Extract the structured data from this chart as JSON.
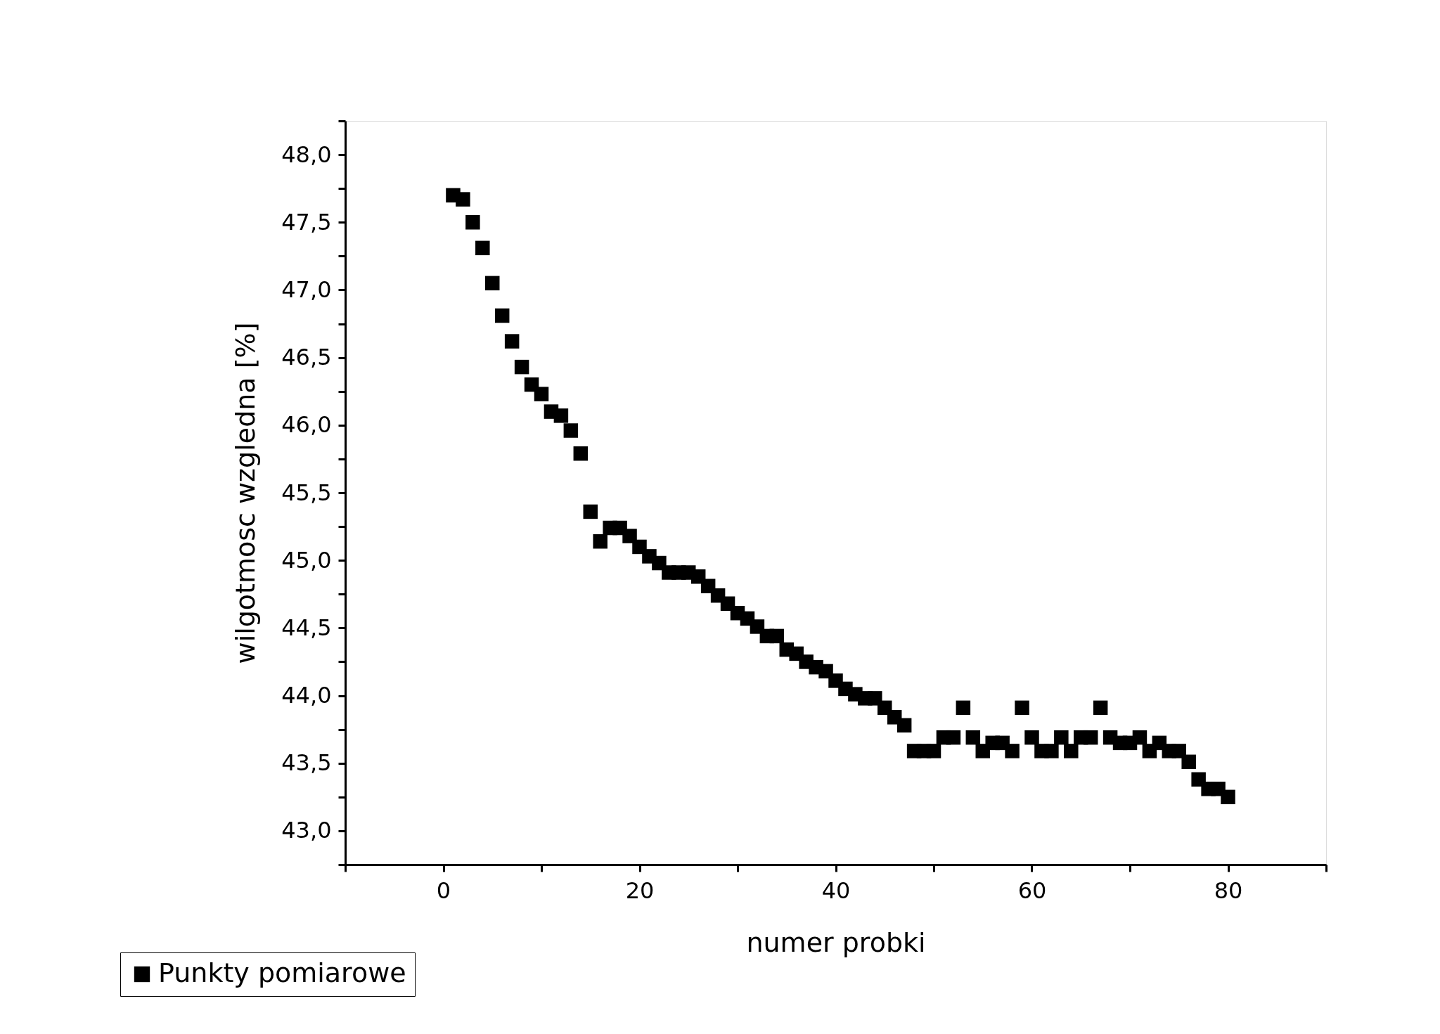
{
  "chart_data": {
    "type": "scatter",
    "xlabel": "numer probki",
    "ylabel": "wilgotmosc wzgledna [%]",
    "x": [
      1,
      2,
      3,
      4,
      5,
      6,
      7,
      8,
      9,
      10,
      11,
      12,
      13,
      14,
      15,
      16,
      17,
      18,
      19,
      20,
      21,
      22,
      23,
      24,
      25,
      26,
      27,
      28,
      29,
      30,
      31,
      32,
      33,
      34,
      35,
      36,
      37,
      38,
      39,
      40,
      41,
      42,
      43,
      44,
      45,
      46,
      47,
      48,
      49,
      50,
      51,
      52,
      53,
      54,
      55,
      56,
      57,
      58,
      59,
      60,
      61,
      62,
      63,
      64,
      65,
      66,
      67,
      68,
      69,
      70,
      71,
      72,
      73,
      74,
      75,
      76,
      77,
      78,
      79,
      80
    ],
    "series": [
      {
        "name": "Punkty pomiarowe",
        "color": "#000000",
        "values": [
          47.7,
          47.67,
          47.5,
          47.31,
          47.05,
          46.81,
          46.62,
          46.43,
          46.3,
          46.23,
          46.1,
          46.07,
          45.96,
          45.79,
          45.36,
          45.14,
          45.24,
          45.24,
          45.18,
          45.1,
          45.03,
          44.98,
          44.91,
          44.91,
          44.91,
          44.88,
          44.81,
          44.74,
          44.68,
          44.61,
          44.57,
          44.51,
          44.44,
          44.44,
          44.34,
          44.31,
          44.25,
          44.21,
          44.18,
          44.11,
          44.05,
          44.01,
          43.98,
          43.98,
          43.91,
          43.84,
          43.78,
          43.59,
          43.59,
          43.59,
          43.69,
          43.69,
          43.91,
          43.69,
          43.59,
          43.65,
          43.65,
          43.59,
          43.91,
          43.69,
          43.59,
          43.59,
          43.69,
          43.59,
          43.69,
          43.69,
          43.91,
          43.69,
          43.65,
          43.65,
          43.69,
          43.59,
          43.65,
          43.59,
          43.59,
          43.51,
          43.38,
          43.31,
          43.31,
          43.25
        ]
      }
    ],
    "marker": "square",
    "grid": false,
    "legend": "bottom left",
    "xlim": [
      -10,
      90
    ],
    "xticks": [
      {
        "value": -10,
        "label": null
      },
      0,
      {
        "value": 10,
        "label": null
      },
      20,
      {
        "value": 30,
        "label": null
      },
      40,
      {
        "value": 50,
        "label": null
      },
      60,
      {
        "value": 70,
        "label": null
      },
      80,
      {
        "value": 90,
        "label": null
      }
    ],
    "ylim": [
      42.75,
      48.25
    ],
    "yticks": [
      {
        "value": 42.75,
        "label": null
      },
      {
        "value": 43,
        "label": "43,0"
      },
      {
        "value": 43.25,
        "label": null
      },
      {
        "value": 43.5,
        "label": "43,5"
      },
      {
        "value": 43.75,
        "label": null
      },
      {
        "value": 44,
        "label": "44,0"
      },
      {
        "value": 44.25,
        "label": null
      },
      {
        "value": 44.5,
        "label": "44,5"
      },
      {
        "value": 44.75,
        "label": null
      },
      {
        "value": 45,
        "label": "45,0"
      },
      {
        "value": 45.25,
        "label": null
      },
      {
        "value": 45.5,
        "label": "45,5"
      },
      {
        "value": 45.75,
        "label": null
      },
      {
        "value": 46,
        "label": "46,0"
      },
      {
        "value": 46.25,
        "label": null
      },
      {
        "value": 46.5,
        "label": "46,5"
      },
      {
        "value": 46.75,
        "label": null
      },
      {
        "value": 47,
        "label": "47,0"
      },
      {
        "value": 47.25,
        "label": null
      },
      {
        "value": 47.5,
        "label": "47,5"
      },
      {
        "value": 47.75,
        "label": null
      },
      {
        "value": 48,
        "label": "48,0"
      },
      {
        "value": 48.25,
        "label": null
      }
    ]
  }
}
